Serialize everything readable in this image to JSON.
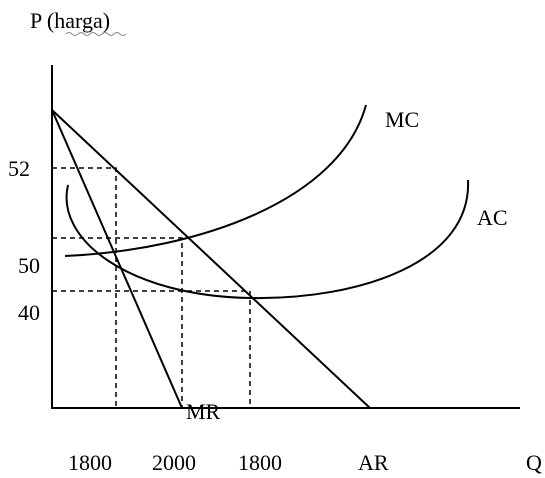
{
  "axis_title_y": "P (harga)",
  "y_labels": [
    "52",
    "50",
    "40"
  ],
  "curve_labels": [
    "MC",
    "AC",
    "MR"
  ],
  "x_labels": [
    "1800",
    "2000",
    "1800",
    "AR"
  ],
  "axis_title_x": "Q"
}
